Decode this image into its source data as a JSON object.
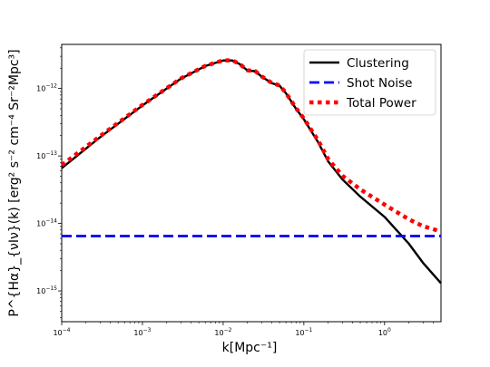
{
  "chart_data": {
    "type": "line",
    "title": "",
    "xlabel": "k[Mpc⁻¹]",
    "ylabel": "P^{Hα}_{νIν}(k) [erg² s⁻² cm⁻⁴ Sr⁻²Mpc³]",
    "xscale": "log",
    "yscale": "log",
    "xlim": [
      0.0001,
      5.0
    ],
    "ylim": [
      3.5e-16,
      4.5e-12
    ],
    "legend_position": "top-right",
    "grid": false,
    "x_ticks": [
      {
        "value": 0.0001,
        "base": "10",
        "exp": "−4"
      },
      {
        "value": 0.001,
        "base": "10",
        "exp": "−3"
      },
      {
        "value": 0.01,
        "base": "10",
        "exp": "−2"
      },
      {
        "value": 0.1,
        "base": "10",
        "exp": "−1"
      },
      {
        "value": 1,
        "base": "10",
        "exp": "0"
      }
    ],
    "y_ticks": [
      {
        "value": 1e-15,
        "base": "10",
        "exp": "−15"
      },
      {
        "value": 1e-14,
        "base": "10",
        "exp": "−14"
      },
      {
        "value": 1e-13,
        "base": "10",
        "exp": "−13"
      },
      {
        "value": 1e-12,
        "base": "10",
        "exp": "−12"
      }
    ],
    "series": [
      {
        "name": "Clustering",
        "color": "#000000",
        "style": "solid",
        "x": [
          0.0001,
          0.0003,
          0.001,
          0.003,
          0.006,
          0.01,
          0.013,
          0.016,
          0.02,
          0.025,
          0.03,
          0.04,
          0.05,
          0.06,
          0.08,
          0.1,
          0.15,
          0.2,
          0.3,
          0.5,
          1,
          2,
          3,
          5
        ],
        "y": [
          6.6e-14,
          1.9e-13,
          5.6e-13,
          1.4e-12,
          2.15e-12,
          2.6e-12,
          2.6e-12,
          2.3e-12,
          1.85e-12,
          1.8e-12,
          1.5e-12,
          1.2e-12,
          1.1e-12,
          8.5e-13,
          5e-13,
          3.5e-13,
          1.6e-13,
          8.3e-14,
          4.5e-14,
          2.5e-14,
          1.25e-14,
          5e-15,
          2.6e-15,
          1.3e-15
        ]
      },
      {
        "name": "Shot Noise",
        "color": "#0000ff",
        "style": "dashed",
        "x": [
          0.0001,
          5
        ],
        "y": [
          6.5e-15,
          6.5e-15
        ]
      },
      {
        "name": "Total Power",
        "color": "#ff0000",
        "style": "dotted",
        "x": [
          0.0001,
          0.0003,
          0.001,
          0.003,
          0.006,
          0.01,
          0.013,
          0.016,
          0.02,
          0.025,
          0.03,
          0.04,
          0.05,
          0.06,
          0.08,
          0.1,
          0.15,
          0.2,
          0.3,
          0.5,
          1,
          2,
          3,
          5
        ],
        "y": [
          7.3e-14,
          1.97e-13,
          5.7e-13,
          1.41e-12,
          2.16e-12,
          2.61e-12,
          2.61e-12,
          2.31e-12,
          1.86e-12,
          1.81e-12,
          1.51e-12,
          1.21e-12,
          1.11e-12,
          8.6e-13,
          5.1e-13,
          3.6e-13,
          1.7e-13,
          9e-14,
          5.1e-14,
          3.2e-14,
          1.9e-14,
          1.15e-14,
          9.1e-15,
          7.6e-15
        ]
      }
    ]
  }
}
